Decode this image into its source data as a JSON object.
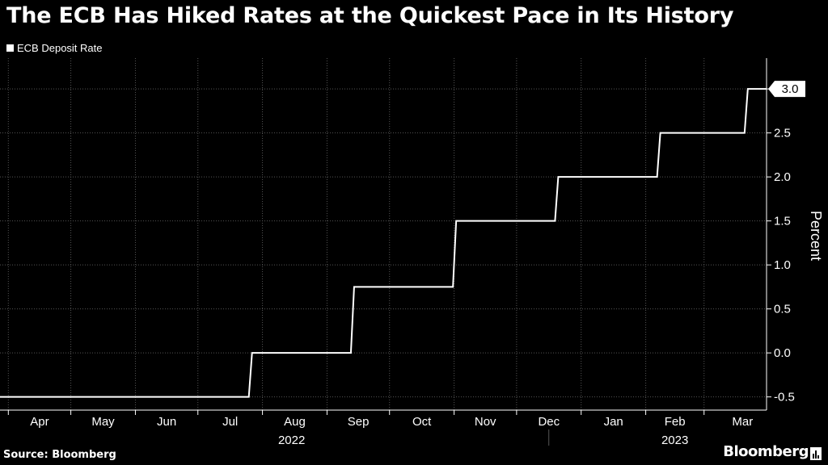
{
  "title": "The ECB Has Hiked Rates at the Quickest Pace in Its History",
  "source": "Source: Bloomberg",
  "brand": "Bloomberg",
  "colors": {
    "background": "#000000",
    "line": "#ffffff",
    "grid": "#555555"
  },
  "chart_data": {
    "type": "line",
    "title": "The ECB Has Hiked Rates at the Quickest Pace in Its History",
    "ylabel": "Percent",
    "xlabel": "",
    "x_range": [
      "2022-03-28",
      "2023-03-31"
    ],
    "ylim": [
      -0.65,
      3.35
    ],
    "y_ticks": [
      -0.5,
      0.0,
      0.5,
      1.0,
      1.5,
      2.0,
      2.5,
      3.0
    ],
    "y_tick_labels": [
      "-0.5",
      "0.0",
      "0.5",
      "1.0",
      "1.5",
      "2.0",
      "2.5",
      "3.0"
    ],
    "month_ticks": [
      {
        "label": "Apr",
        "date": "2022-04-01"
      },
      {
        "label": "May",
        "date": "2022-05-01"
      },
      {
        "label": "Jun",
        "date": "2022-06-01"
      },
      {
        "label": "Jul",
        "date": "2022-07-01"
      },
      {
        "label": "Aug",
        "date": "2022-08-01"
      },
      {
        "label": "Sep",
        "date": "2022-09-01"
      },
      {
        "label": "Oct",
        "date": "2022-10-01"
      },
      {
        "label": "Nov",
        "date": "2022-11-01"
      },
      {
        "label": "Dec",
        "date": "2022-12-01"
      },
      {
        "label": "Jan",
        "date": "2023-01-01"
      },
      {
        "label": "Feb",
        "date": "2023-02-01"
      },
      {
        "label": "Mar",
        "date": "2023-03-01"
      }
    ],
    "year_labels": [
      {
        "label": "2022",
        "date": "2022-08-15"
      },
      {
        "label": "2023",
        "date": "2023-02-15"
      }
    ],
    "year_divider": "2023-01-01",
    "grid": true,
    "legend_position": "top-left",
    "last_value_label": "3.0",
    "series": [
      {
        "name": "ECB Deposit Rate",
        "color": "#ffffff",
        "step": true,
        "points": [
          {
            "x": "2022-03-28",
            "y": -0.5
          },
          {
            "x": "2022-07-27",
            "y": 0.0
          },
          {
            "x": "2022-09-14",
            "y": 0.75
          },
          {
            "x": "2022-11-02",
            "y": 1.5
          },
          {
            "x": "2022-12-21",
            "y": 2.0
          },
          {
            "x": "2023-02-08",
            "y": 2.5
          },
          {
            "x": "2023-03-22",
            "y": 3.0
          },
          {
            "x": "2023-03-31",
            "y": 3.0
          }
        ]
      }
    ]
  }
}
